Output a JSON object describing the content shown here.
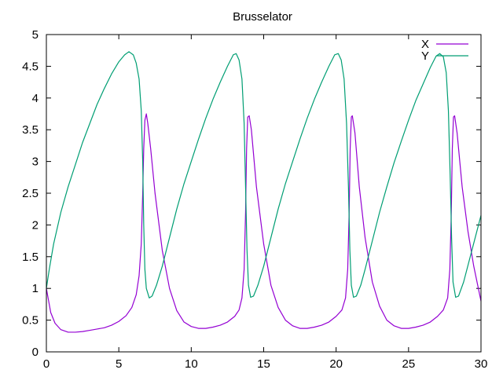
{
  "chart_data": {
    "type": "line",
    "title": "Brusselator",
    "xlabel": "",
    "ylabel": "",
    "xlim": [
      0,
      30
    ],
    "ylim": [
      0,
      5
    ],
    "xticks": [
      0,
      5,
      10,
      15,
      20,
      25,
      30
    ],
    "yticks": [
      0,
      0.5,
      1,
      1.5,
      2,
      2.5,
      3,
      3.5,
      4,
      4.5,
      5
    ],
    "ytick_labels": [
      "0",
      "0.5",
      "1",
      "1.5",
      "2",
      "2.5",
      "3",
      "3.5",
      "4",
      "4.5",
      "5"
    ],
    "grid": false,
    "legend_position": "top-right",
    "series": [
      {
        "name": "X",
        "color": "#9400d3",
        "points": [
          [
            0,
            1.0
          ],
          [
            0.3,
            0.62
          ],
          [
            0.6,
            0.45
          ],
          [
            1.0,
            0.35
          ],
          [
            1.5,
            0.31
          ],
          [
            2,
            0.31
          ],
          [
            2.5,
            0.32
          ],
          [
            3,
            0.34
          ],
          [
            3.5,
            0.36
          ],
          [
            4,
            0.38
          ],
          [
            4.5,
            0.42
          ],
          [
            5,
            0.48
          ],
          [
            5.5,
            0.57
          ],
          [
            5.9,
            0.7
          ],
          [
            6.2,
            0.9
          ],
          [
            6.4,
            1.2
          ],
          [
            6.55,
            1.7
          ],
          [
            6.65,
            2.5
          ],
          [
            6.72,
            3.2
          ],
          [
            6.8,
            3.65
          ],
          [
            6.9,
            3.75
          ],
          [
            7.0,
            3.6
          ],
          [
            7.2,
            3.2
          ],
          [
            7.5,
            2.5
          ],
          [
            8.0,
            1.6
          ],
          [
            8.5,
            1.0
          ],
          [
            9.0,
            0.65
          ],
          [
            9.5,
            0.47
          ],
          [
            10,
            0.4
          ],
          [
            10.5,
            0.37
          ],
          [
            11,
            0.37
          ],
          [
            11.5,
            0.39
          ],
          [
            12,
            0.42
          ],
          [
            12.5,
            0.47
          ],
          [
            13,
            0.56
          ],
          [
            13.3,
            0.66
          ],
          [
            13.5,
            0.85
          ],
          [
            13.65,
            1.3
          ],
          [
            13.75,
            2.2
          ],
          [
            13.82,
            3.2
          ],
          [
            13.9,
            3.7
          ],
          [
            14.0,
            3.72
          ],
          [
            14.15,
            3.5
          ],
          [
            14.5,
            2.6
          ],
          [
            15,
            1.7
          ],
          [
            15.5,
            1.05
          ],
          [
            16,
            0.7
          ],
          [
            16.5,
            0.5
          ],
          [
            17,
            0.41
          ],
          [
            17.5,
            0.37
          ],
          [
            18,
            0.37
          ],
          [
            18.5,
            0.39
          ],
          [
            19,
            0.42
          ],
          [
            19.5,
            0.47
          ],
          [
            20,
            0.56
          ],
          [
            20.4,
            0.66
          ],
          [
            20.65,
            0.85
          ],
          [
            20.8,
            1.3
          ],
          [
            20.9,
            2.2
          ],
          [
            20.97,
            3.2
          ],
          [
            21.05,
            3.7
          ],
          [
            21.12,
            3.72
          ],
          [
            21.3,
            3.45
          ],
          [
            21.6,
            2.6
          ],
          [
            22,
            1.8
          ],
          [
            22.5,
            1.1
          ],
          [
            23,
            0.72
          ],
          [
            23.5,
            0.5
          ],
          [
            24,
            0.41
          ],
          [
            24.5,
            0.37
          ],
          [
            25,
            0.37
          ],
          [
            25.5,
            0.39
          ],
          [
            26,
            0.42
          ],
          [
            26.5,
            0.47
          ],
          [
            27,
            0.56
          ],
          [
            27.4,
            0.66
          ],
          [
            27.7,
            0.85
          ],
          [
            27.85,
            1.3
          ],
          [
            27.95,
            2.2
          ],
          [
            28.02,
            3.2
          ],
          [
            28.1,
            3.7
          ],
          [
            28.18,
            3.72
          ],
          [
            28.35,
            3.45
          ],
          [
            28.7,
            2.6
          ],
          [
            29.1,
            1.9
          ],
          [
            29.5,
            1.35
          ],
          [
            30,
            0.8
          ]
        ]
      },
      {
        "name": "Y",
        "color": "#009e73",
        "points": [
          [
            0,
            1.0
          ],
          [
            0.2,
            1.3
          ],
          [
            0.5,
            1.7
          ],
          [
            1,
            2.2
          ],
          [
            1.5,
            2.6
          ],
          [
            2,
            2.95
          ],
          [
            2.5,
            3.3
          ],
          [
            3,
            3.6
          ],
          [
            3.5,
            3.9
          ],
          [
            4,
            4.15
          ],
          [
            4.5,
            4.38
          ],
          [
            5,
            4.57
          ],
          [
            5.4,
            4.68
          ],
          [
            5.7,
            4.73
          ],
          [
            6.0,
            4.68
          ],
          [
            6.2,
            4.55
          ],
          [
            6.4,
            4.3
          ],
          [
            6.55,
            3.8
          ],
          [
            6.65,
            3.0
          ],
          [
            6.72,
            2.0
          ],
          [
            6.8,
            1.3
          ],
          [
            6.9,
            1.0
          ],
          [
            7.1,
            0.85
          ],
          [
            7.3,
            0.88
          ],
          [
            7.6,
            1.05
          ],
          [
            8,
            1.35
          ],
          [
            8.5,
            1.8
          ],
          [
            9,
            2.25
          ],
          [
            9.5,
            2.65
          ],
          [
            10,
            3.0
          ],
          [
            10.5,
            3.35
          ],
          [
            11,
            3.68
          ],
          [
            11.5,
            3.98
          ],
          [
            12,
            4.25
          ],
          [
            12.5,
            4.5
          ],
          [
            12.9,
            4.68
          ],
          [
            13.1,
            4.7
          ],
          [
            13.3,
            4.6
          ],
          [
            13.5,
            4.3
          ],
          [
            13.65,
            3.6
          ],
          [
            13.75,
            2.6
          ],
          [
            13.85,
            1.6
          ],
          [
            13.95,
            1.05
          ],
          [
            14.1,
            0.86
          ],
          [
            14.3,
            0.88
          ],
          [
            14.6,
            1.05
          ],
          [
            15,
            1.35
          ],
          [
            15.5,
            1.8
          ],
          [
            16,
            2.25
          ],
          [
            16.5,
            2.65
          ],
          [
            17,
            3.0
          ],
          [
            17.5,
            3.35
          ],
          [
            18,
            3.68
          ],
          [
            18.5,
            3.98
          ],
          [
            19,
            4.25
          ],
          [
            19.5,
            4.5
          ],
          [
            19.9,
            4.68
          ],
          [
            20.15,
            4.7
          ],
          [
            20.35,
            4.6
          ],
          [
            20.55,
            4.3
          ],
          [
            20.72,
            3.6
          ],
          [
            20.85,
            2.6
          ],
          [
            20.95,
            1.6
          ],
          [
            21.05,
            1.05
          ],
          [
            21.2,
            0.86
          ],
          [
            21.4,
            0.88
          ],
          [
            21.7,
            1.05
          ],
          [
            22,
            1.3
          ],
          [
            22.5,
            1.75
          ],
          [
            23,
            2.2
          ],
          [
            23.5,
            2.6
          ],
          [
            24,
            2.98
          ],
          [
            24.5,
            3.32
          ],
          [
            25,
            3.65
          ],
          [
            25.5,
            3.96
          ],
          [
            26,
            4.22
          ],
          [
            26.5,
            4.48
          ],
          [
            26.9,
            4.66
          ],
          [
            27.15,
            4.7
          ],
          [
            27.4,
            4.65
          ],
          [
            27.6,
            4.4
          ],
          [
            27.75,
            3.8
          ],
          [
            27.87,
            2.8
          ],
          [
            27.97,
            1.8
          ],
          [
            28.07,
            1.1
          ],
          [
            28.25,
            0.86
          ],
          [
            28.45,
            0.88
          ],
          [
            28.8,
            1.1
          ],
          [
            29.2,
            1.45
          ],
          [
            29.6,
            1.8
          ],
          [
            30,
            2.15
          ]
        ]
      }
    ]
  }
}
